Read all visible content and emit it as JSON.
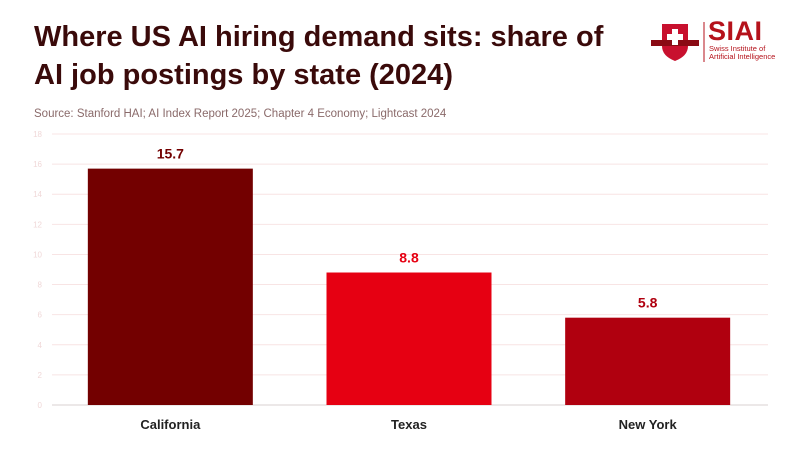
{
  "title": "Where US AI hiring demand sits: share of AI job postings by state (2024)",
  "source": "Source: Stanford HAI; AI Index Report 2025; Chapter 4 Economy; Lightcast 2024",
  "logo": {
    "name": "SIAI",
    "subtitle_line1": "Swiss Institute of",
    "subtitle_line2": "Artificial Intelligence"
  },
  "colors": {
    "California": "#730000",
    "Texas": "#e60012",
    "New York": "#b0000f",
    "grid": "#f8e4e4",
    "title": "#3a0a0a"
  },
  "chart_data": {
    "type": "bar",
    "title": "Where US AI hiring demand sits: share of AI job postings by state (2024)",
    "xlabel": "",
    "ylabel": "",
    "categories": [
      "California",
      "Texas",
      "New York"
    ],
    "values": [
      15.7,
      8.8,
      5.8
    ],
    "data_labels": [
      "15.7",
      "8.8",
      "5.8"
    ],
    "ylim": [
      0,
      18
    ],
    "yticks": [
      0,
      2,
      4,
      6,
      8,
      10,
      12,
      14,
      16,
      18
    ],
    "grid": true,
    "legend": "none"
  }
}
